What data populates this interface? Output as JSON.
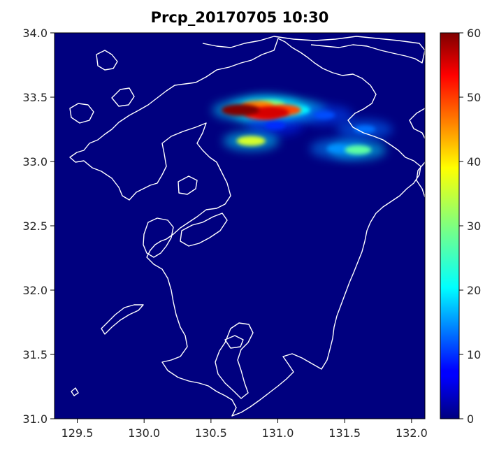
{
  "chart_data": {
    "type": "heatmap",
    "title": "Prcp_20170705 10:30",
    "xlabel": "",
    "ylabel": "",
    "xlim": [
      129.33,
      132.1
    ],
    "ylim": [
      31.0,
      34.0
    ],
    "x_ticks": [
      "129.5",
      "130.0",
      "130.5",
      "131.0",
      "131.5",
      "132.0"
    ],
    "y_ticks": [
      "31.0",
      "31.5",
      "32.0",
      "32.5",
      "33.0",
      "33.5",
      "34.0"
    ],
    "colorbar": {
      "colormap": "jet",
      "vmin": 0,
      "vmax": 60,
      "ticks": [
        "0",
        "10",
        "20",
        "30",
        "40",
        "50",
        "60"
      ]
    },
    "background_value": 0,
    "precipitation_cells": [
      {
        "lon": 130.95,
        "lat": 33.44,
        "value": 30
      },
      {
        "lon": 130.85,
        "lat": 33.43,
        "value": 45
      },
      {
        "lon": 130.72,
        "lat": 33.4,
        "value": 60
      },
      {
        "lon": 130.95,
        "lat": 33.38,
        "value": 55
      },
      {
        "lon": 131.05,
        "lat": 33.4,
        "value": 48
      },
      {
        "lon": 130.88,
        "lat": 33.37,
        "value": 52
      },
      {
        "lon": 131.15,
        "lat": 33.4,
        "value": 22
      },
      {
        "lon": 131.35,
        "lat": 33.36,
        "value": 12
      },
      {
        "lon": 130.98,
        "lat": 33.28,
        "value": 10
      },
      {
        "lon": 130.8,
        "lat": 33.16,
        "value": 35
      },
      {
        "lon": 131.6,
        "lat": 33.09,
        "value": 28
      },
      {
        "lon": 131.45,
        "lat": 33.1,
        "value": 16
      },
      {
        "lon": 131.65,
        "lat": 33.25,
        "value": 14
      }
    ],
    "coastline_color": "#ffffff"
  }
}
